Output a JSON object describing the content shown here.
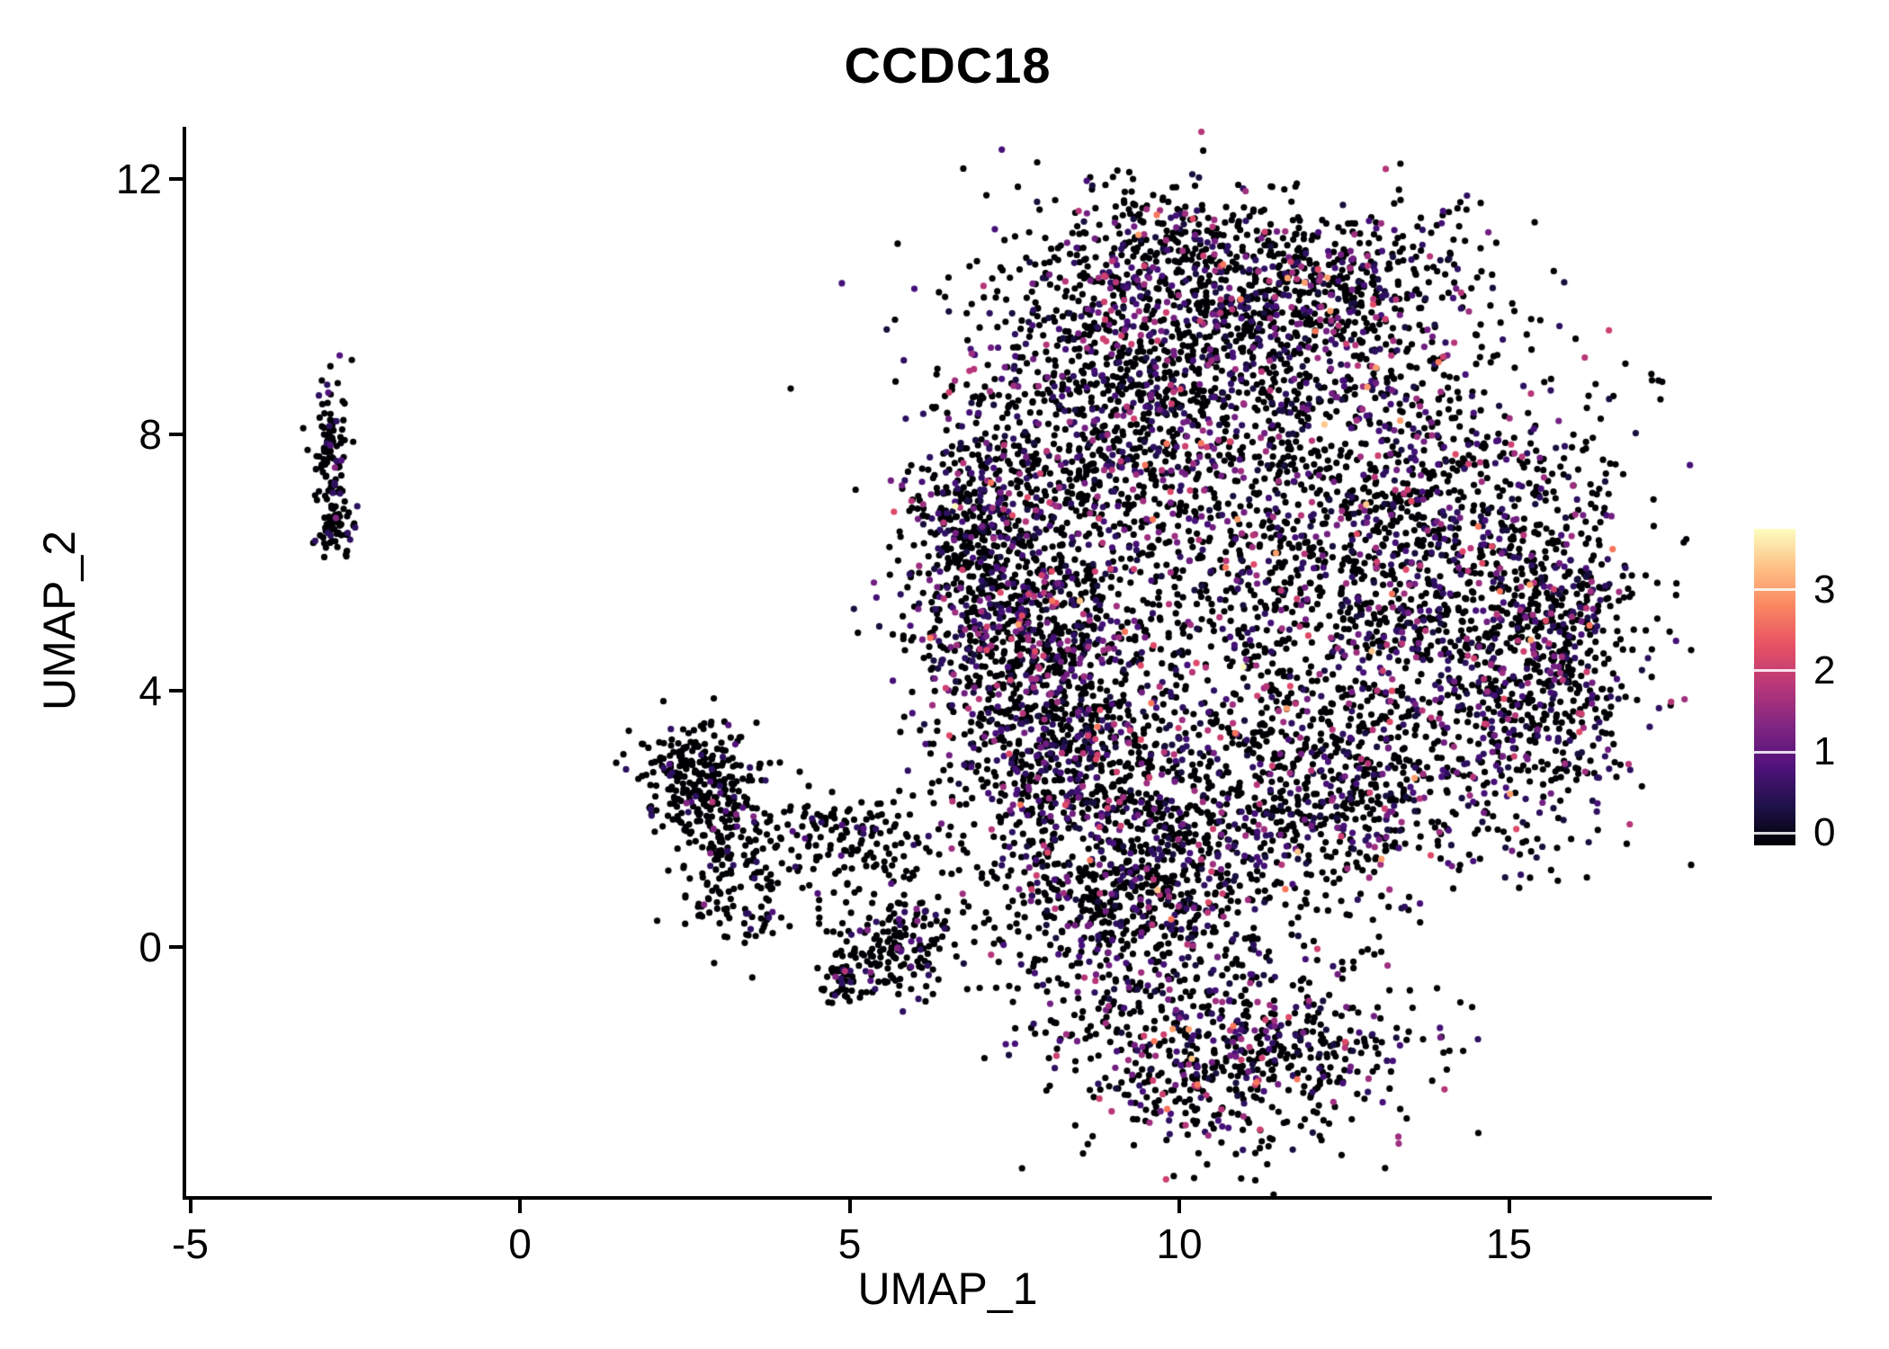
{
  "figure": {
    "background": "#FFFFFF",
    "axis_color": "#000000",
    "text_color": "#000000"
  },
  "chart_data": {
    "type": "scatter",
    "title": "CCDC18",
    "xlabel": "UMAP_1",
    "ylabel": "UMAP_2",
    "x_ticks": [
      -5,
      0,
      5,
      10,
      15
    ],
    "y_ticks": [
      0,
      4,
      8,
      12
    ],
    "x_range": [
      -5.06,
      18.0
    ],
    "y_range": [
      -3.89,
      12.78
    ],
    "grid": false,
    "legend_position": "right",
    "colorbar": {
      "ticks": [
        0,
        1,
        2,
        3
      ],
      "min": -0.15,
      "max": 3.75,
      "colormap": "magma",
      "stops": [
        "#000004",
        "#1D1147",
        "#51127C",
        "#822681",
        "#B63679",
        "#E65164",
        "#FB8861",
        "#FEC287",
        "#FCFDBF"
      ]
    },
    "palettes": {
      "sparse": [
        [
          "#000004",
          0.88
        ],
        [
          "#2D1160",
          0.07
        ],
        [
          "#51127C",
          0.03
        ],
        [
          "#822681",
          0.015
        ],
        [
          "#B63679",
          0.005
        ]
      ],
      "main": [
        [
          "#000004",
          0.695
        ],
        [
          "#180F3E",
          0.06
        ],
        [
          "#2D1160",
          0.08
        ],
        [
          "#451077",
          0.05
        ],
        [
          "#721F81",
          0.045
        ],
        [
          "#9E2F7F",
          0.03
        ],
        [
          "#B63679",
          0.018
        ],
        [
          "#CD4071",
          0.009
        ],
        [
          "#DE4968",
          0.006
        ],
        [
          "#F8765C",
          0.004
        ],
        [
          "#FE9F6D",
          0.002
        ],
        [
          "#FEC98D",
          0.0008
        ],
        [
          "#FCFDBF",
          0.0004
        ]
      ]
    },
    "clusters": [
      {
        "name": "left-strip-upper",
        "cx": -2.85,
        "cy": 7.7,
        "sx": 0.13,
        "sy": 0.55,
        "n": 110,
        "palette": "sparse"
      },
      {
        "name": "left-strip-lower",
        "cx": -2.78,
        "cy": 6.45,
        "sx": 0.12,
        "sy": 0.22,
        "n": 45,
        "palette": "sparse"
      },
      {
        "name": "mid-blob-upper",
        "cx": 2.75,
        "cy": 2.55,
        "sx": 0.45,
        "sy": 0.5,
        "n": 280,
        "palette": "sparse"
      },
      {
        "name": "mid-blob-lower",
        "cx": 3.25,
        "cy": 1.15,
        "sx": 0.45,
        "sy": 0.55,
        "n": 150,
        "palette": "sparse"
      },
      {
        "name": "mid-arm",
        "cx": 4.7,
        "cy": 1.85,
        "sx": 0.85,
        "sy": 0.27,
        "n": 120,
        "palette": "sparse"
      },
      {
        "name": "mid-lower-piece",
        "cx": 5.65,
        "cy": 0.05,
        "sx": 0.5,
        "sy": 0.38,
        "n": 170,
        "palette": "sparse"
      },
      {
        "name": "mid-dense-spot",
        "cx": 4.85,
        "cy": -0.55,
        "sx": 0.16,
        "sy": 0.16,
        "n": 45,
        "palette": "sparse"
      },
      {
        "name": "mid-scatter",
        "cx": 5.4,
        "cy": 1.1,
        "sx": 0.7,
        "sy": 0.5,
        "n": 60,
        "palette": "sparse"
      },
      {
        "name": "main-upper-left",
        "cx": 8.9,
        "cy": 8.3,
        "sx": 1.25,
        "sy": 1.45,
        "n": 1100,
        "palette": "main"
      },
      {
        "name": "main-top",
        "cx": 11.3,
        "cy": 9.7,
        "sx": 1.5,
        "sy": 0.95,
        "n": 800,
        "palette": "main"
      },
      {
        "name": "main-left-edge",
        "cx": 7.4,
        "cy": 5.2,
        "sx": 0.75,
        "sy": 0.95,
        "n": 650,
        "palette": "main"
      },
      {
        "name": "main-left-mid",
        "cx": 8.2,
        "cy": 3.2,
        "sx": 0.9,
        "sy": 1.1,
        "n": 700,
        "palette": "main"
      },
      {
        "name": "main-bottom-center",
        "cx": 9.4,
        "cy": 0.9,
        "sx": 1.1,
        "sy": 1.0,
        "n": 850,
        "palette": "main"
      },
      {
        "name": "main-middle",
        "cx": 11.2,
        "cy": 5.2,
        "sx": 1.9,
        "sy": 1.8,
        "n": 800,
        "palette": "main"
      },
      {
        "name": "main-right-upper",
        "cx": 13.4,
        "cy": 6.6,
        "sx": 1.5,
        "sy": 1.5,
        "n": 900,
        "palette": "main"
      },
      {
        "name": "main-right-lower",
        "cx": 14.9,
        "cy": 4.2,
        "sx": 1.05,
        "sy": 1.2,
        "n": 600,
        "palette": "main"
      },
      {
        "name": "main-lower-right",
        "cx": 12.2,
        "cy": 2.4,
        "sx": 1.4,
        "sy": 0.9,
        "n": 600,
        "palette": "main"
      },
      {
        "name": "main-bottom-lobe",
        "cx": 10.8,
        "cy": -1.7,
        "sx": 1.4,
        "sy": 0.75,
        "n": 650,
        "palette": "main"
      },
      {
        "name": "main-top-right",
        "cx": 12.6,
        "cy": 10.5,
        "sx": 1.1,
        "sy": 0.6,
        "n": 220,
        "palette": "main"
      },
      {
        "name": "main-right-edge",
        "cx": 15.9,
        "cy": 5.2,
        "sx": 0.45,
        "sy": 1.4,
        "n": 280,
        "palette": "main"
      },
      {
        "name": "main-ul-protrusion",
        "cx": 6.9,
        "cy": 6.9,
        "sx": 0.5,
        "sy": 0.6,
        "n": 220,
        "palette": "main"
      },
      {
        "name": "main-top-protrusion",
        "cx": 9.9,
        "cy": 11.0,
        "sx": 0.8,
        "sy": 0.45,
        "n": 170,
        "palette": "main"
      }
    ]
  }
}
